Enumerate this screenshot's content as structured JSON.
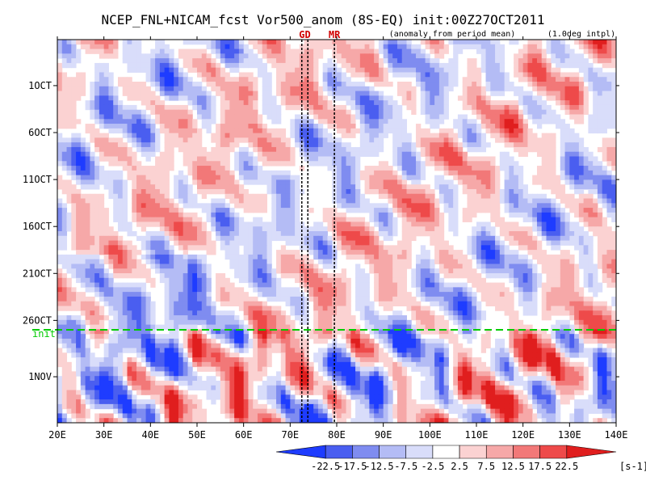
{
  "chart_data": {
    "type": "heatmap",
    "title": "NCEP_FNL+NICAM_fcst Vor500_anom (8S-EQ) init:00Z27OCT2011",
    "subtitle_left": "(anomaly from period mean)",
    "subtitle_right": "(1.0deg intpl)",
    "x_axis": {
      "range": [
        20,
        140
      ],
      "ticks": [
        20,
        30,
        40,
        50,
        60,
        70,
        80,
        90,
        100,
        110,
        120,
        130,
        140
      ],
      "tick_labels": [
        "20E",
        "30E",
        "40E",
        "50E",
        "60E",
        "70E",
        "80E",
        "90E",
        "100E",
        "110E",
        "120E",
        "130E",
        "140E"
      ]
    },
    "y_axis": {
      "tick_labels": [
        "1OCT",
        "6OCT",
        "11OCT",
        "16OCT",
        "21OCT",
        "26OCT",
        "1NOV"
      ],
      "tick_day_index": [
        0,
        5,
        10,
        15,
        20,
        25,
        31
      ],
      "range_day_index": [
        -4.9,
        35.9
      ],
      "direction": "time increases downward"
    },
    "init_line": {
      "label": "init",
      "day_index": 26,
      "color": "#00cc00"
    },
    "markers": [
      {
        "label": "GD",
        "lon": [
          72.5,
          73.8
        ],
        "position": "top"
      },
      {
        "label": "MR",
        "lon": [
          79.5
        ],
        "position": "top"
      }
    ],
    "colorbar": {
      "levels": [
        -22.5,
        -17.5,
        -12.5,
        -7.5,
        -2.5,
        2.5,
        7.5,
        12.5,
        17.5,
        22.5
      ],
      "level_labels": [
        "-22.5",
        "-17.5",
        "-12.5",
        "-7.5",
        "-2.5",
        "2.5",
        "7.5",
        "12.5",
        "17.5",
        "22.5"
      ],
      "colors": [
        "#1e3cff",
        "#4a5ef0",
        "#7f8cf0",
        "#b4bcf5",
        "#d9ddfa",
        "#ffffff",
        "#fbd2d2",
        "#f6a8a8",
        "#f27878",
        "#ee4a4a",
        "#e01e1e"
      ],
      "unit": "[s-1]",
      "extend": "both"
    }
  }
}
